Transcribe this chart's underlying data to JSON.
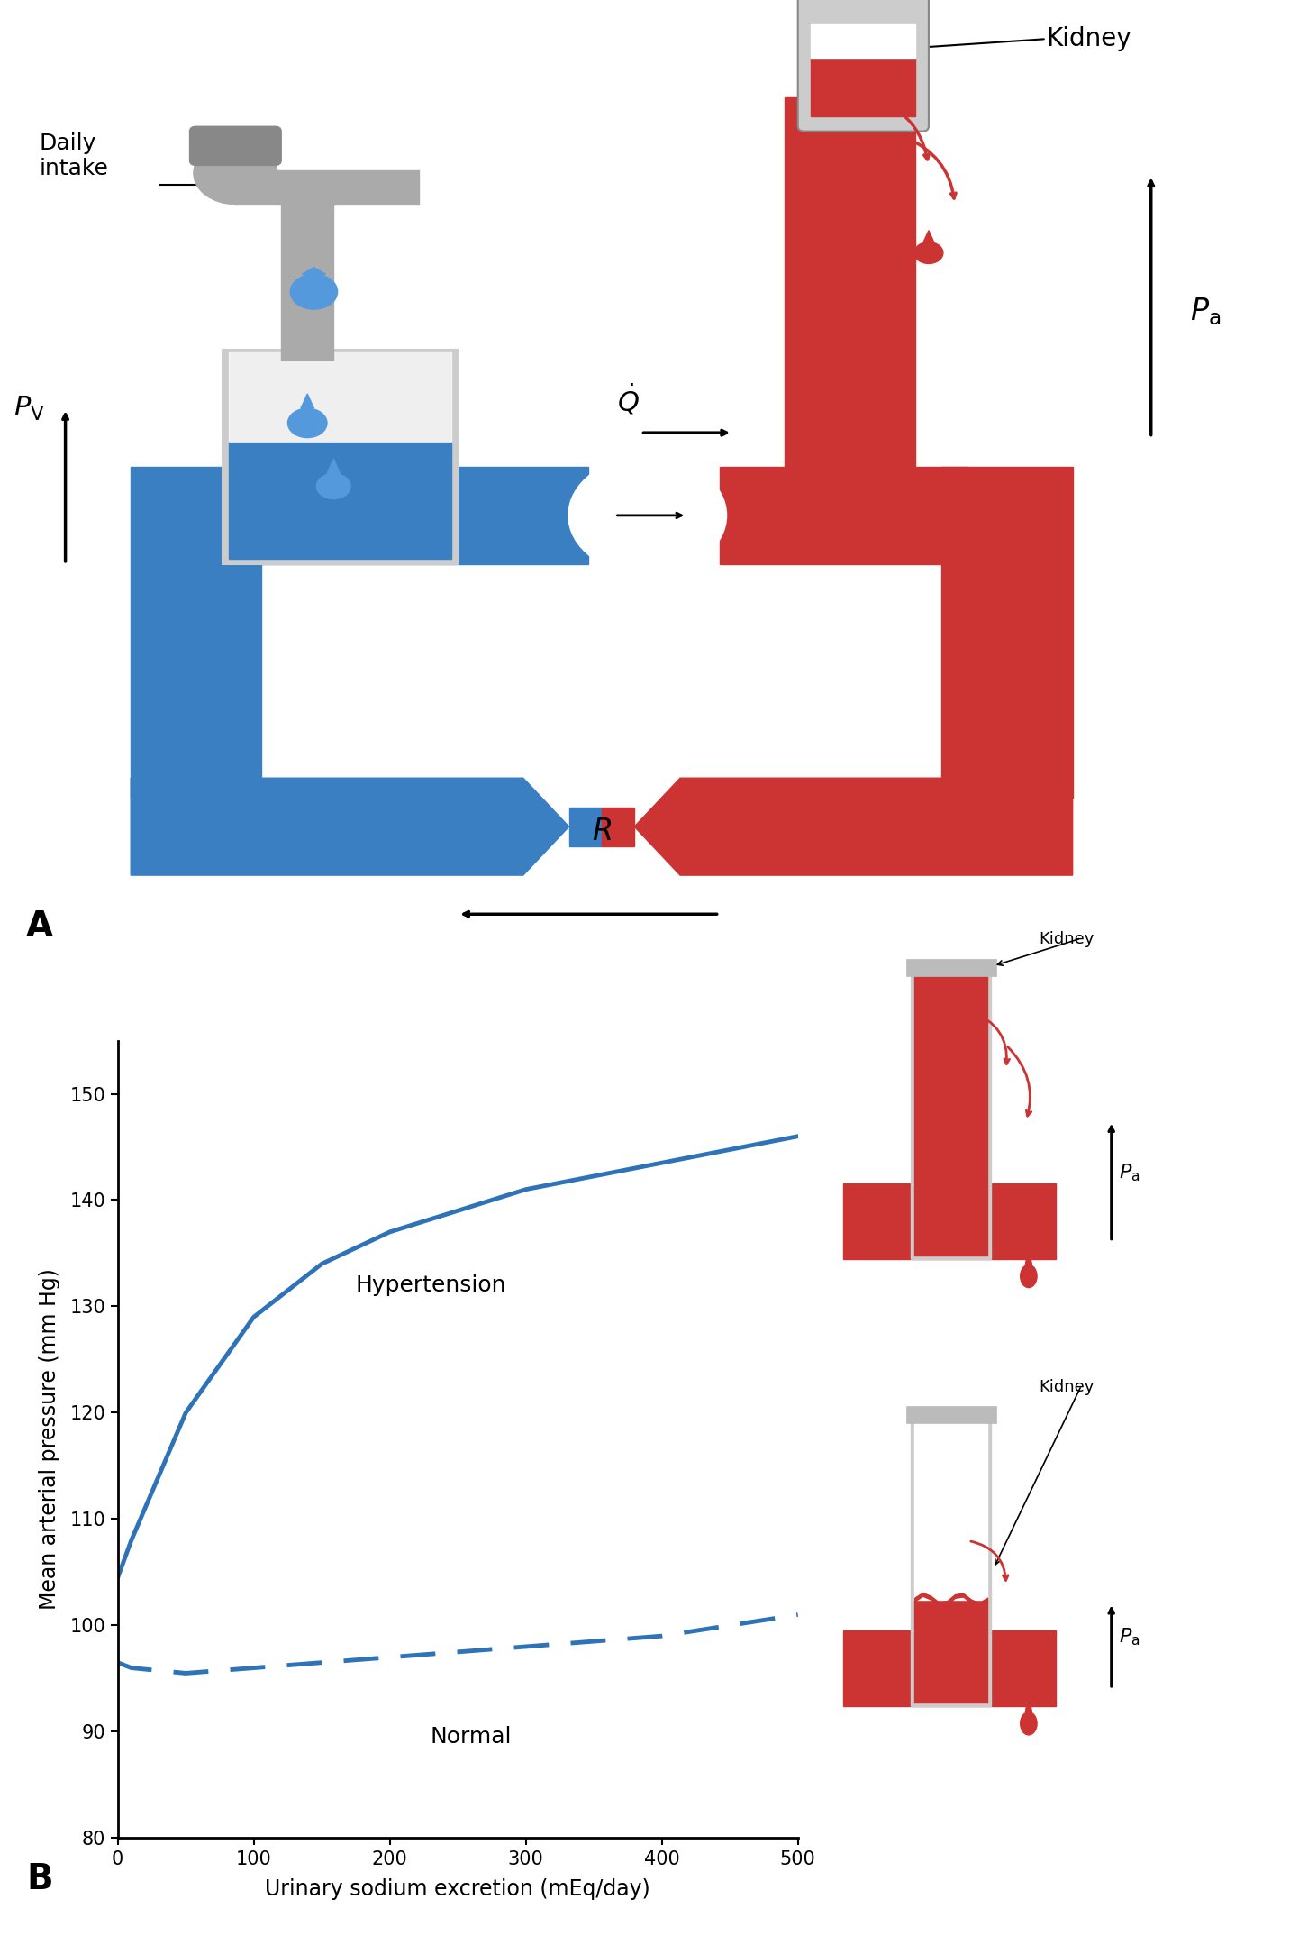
{
  "fig_width": 14.52,
  "fig_height": 21.58,
  "background_color": "#ffffff",
  "blue_color": "#3a7fc1",
  "red_color": "#cc3333",
  "gray_color": "#aaaaaa",
  "gray_light": "#cccccc",
  "gray_dark": "#888888",
  "drop_blue": "#5599dd",
  "drop_red": "#cc3333",
  "hypertension_x": [
    0,
    10,
    50,
    100,
    150,
    200,
    300,
    400,
    500
  ],
  "hypertension_y": [
    104.5,
    108,
    120,
    129,
    134,
    137,
    141,
    143.5,
    146
  ],
  "normal_x": [
    0,
    10,
    50,
    100,
    150,
    200,
    300,
    400,
    500
  ],
  "normal_y": [
    96.5,
    96,
    95.5,
    96,
    96.5,
    97,
    98,
    99,
    101
  ],
  "hypertension_label": "Hypertension",
  "normal_label": "Normal",
  "xlabel": "Urinary sodium excretion (mEq/day)",
  "ylabel": "Mean arterial pressure (mm Hg)",
  "ylim": [
    80,
    155
  ],
  "xlim": [
    0,
    500
  ],
  "yticks": [
    80,
    90,
    100,
    110,
    120,
    130,
    140,
    150
  ],
  "xticks": [
    0,
    100,
    200,
    300,
    400,
    500
  ],
  "line_color": "#2e72b8",
  "line_width": 3.5
}
